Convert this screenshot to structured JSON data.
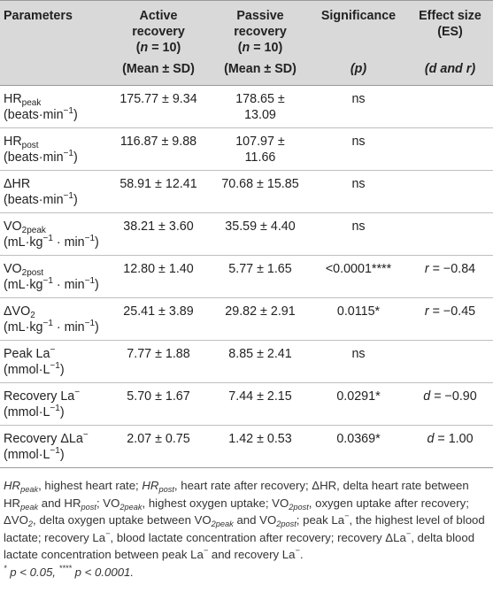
{
  "headers": {
    "parameters": "Parameters",
    "active": {
      "line1": "Active",
      "line2": "recovery",
      "n_open": "(",
      "n_label": "n",
      "n_eq": " = 10)",
      "sub": "(Mean ± SD)"
    },
    "passive": {
      "line1": "Passive",
      "line2": "recovery",
      "n_open": "(",
      "n_label": "n",
      "n_eq": " = 10)",
      "sub": "(Mean ± SD)"
    },
    "significance": {
      "line1": "Significance",
      "sub": "(p)"
    },
    "effect": {
      "line1": "Effect size",
      "line2": "(ES)",
      "sub": "(d and r)"
    }
  },
  "rows": [
    {
      "base": "HR",
      "subscript": "peak",
      "suffix": "",
      "unit": "(beats·min",
      "unit_sup": "−1",
      "unit_end": ")",
      "active": "175.77 ± 9.34",
      "passive_a": "178.65 ±",
      "passive_b": "13.09",
      "sig": "ns",
      "es": ""
    },
    {
      "base": "HR",
      "subscript": "post",
      "suffix": "",
      "unit": "(beats·min",
      "unit_sup": "−1",
      "unit_end": ")",
      "active": "116.87 ± 9.88",
      "passive_a": "107.97 ±",
      "passive_b": "11.66",
      "sig": "ns",
      "es": ""
    },
    {
      "base": "ΔHR",
      "subscript": "",
      "suffix": "",
      "unit": "(beats·min",
      "unit_sup": "−1",
      "unit_end": ")",
      "active": "58.91 ± 12.41",
      "passive_a": "70.68 ± 15.85",
      "passive_b": "",
      "sig": "ns",
      "es": ""
    },
    {
      "base": "VO",
      "subscript": "2peak",
      "suffix": "",
      "unit": "(mL·kg",
      "unit_sup": "−1",
      "unit_end": " · min",
      "unit_sup2": "−1",
      "unit_end2": ")",
      "active": "38.21 ± 3.60",
      "passive_a": "35.59 ± 4.40",
      "passive_b": "",
      "sig": "ns",
      "es": ""
    },
    {
      "base": "VO",
      "subscript": "2post",
      "suffix": "",
      "unit": "(mL·kg",
      "unit_sup": "−1",
      "unit_end": " · min",
      "unit_sup2": "−1",
      "unit_end2": ")",
      "active": "12.80 ± 1.40",
      "passive_a": "5.77 ± 1.65",
      "passive_b": "",
      "sig": "<0.0001****",
      "es_var": "r",
      "es_val": " = −0.84"
    },
    {
      "base": "ΔVO",
      "subscript": "2",
      "suffix": "",
      "unit": "(mL·kg",
      "unit_sup": "−1",
      "unit_end": " · min",
      "unit_sup2": "−1",
      "unit_end2": ")",
      "active": "25.41 ± 3.89",
      "passive_a": "29.82 ± 2.91",
      "passive_b": "",
      "sig": "0.0115*",
      "es_var": "r",
      "es_val": " = −0.45"
    },
    {
      "base": "Peak La",
      "subscript": "",
      "sup": "−",
      "unit": "(mmol·L",
      "unit_sup": "−1",
      "unit_end": ")",
      "active": "7.77 ± 1.88",
      "passive_a": "8.85 ± 2.41",
      "passive_b": "",
      "sig": "ns",
      "es": ""
    },
    {
      "base": "Recovery La",
      "subscript": "",
      "sup": "−",
      "unit": "(mmol·L",
      "unit_sup": "−1",
      "unit_end": ")",
      "active": "5.70 ± 1.67",
      "passive_a": "7.44 ± 2.15",
      "passive_b": "",
      "sig": "0.0291*",
      "es_var": "d",
      "es_val": " = −0.90"
    },
    {
      "base": "Recovery ΔLa",
      "subscript": "",
      "sup": "−",
      "unit": "(mmol·L",
      "unit_sup": "−1",
      "unit_end": ")",
      "active": "2.07 ± 0.75",
      "passive_a": "1.42 ± 0.53",
      "passive_b": "",
      "sig": "0.0369*",
      "es_var": "d",
      "es_val": " = 1.00"
    }
  ],
  "footnote": {
    "t01": "HR",
    "t01s": "peak",
    "t02": ", highest heart rate; ",
    "t03": "HR",
    "t03s": "post",
    "t04": ", heart rate after recovery; ΔHR, delta heart rate between HR",
    "t05s": "peak",
    "t06": " and HR",
    "t07s": "post",
    "t08": "; VO",
    "t09s": "2peak",
    "t10": ", highest oxygen uptake; VO",
    "t11s": "2post",
    "t12": ", oxygen uptake after recovery; ΔVO",
    "t13s": "2",
    "t14": ", delta oxygen uptake between VO",
    "t15s": "2peak",
    "t16": " and VO",
    "t17s": "2post",
    "t18": "; peak La",
    "t19p": "−",
    "t20": ", the highest level of blood lactate; recovery La",
    "t21p": "−",
    "t22": ", blood lactate concentration after recovery; recovery ΔLa",
    "t23p": "−",
    "t24": ", delta blood lactate concentration between peak La",
    "t25p": "−",
    "t26": " and recovery La",
    "t27p": "−",
    "t28": ".",
    "t29p": "*",
    "t30": " p < 0.05, ",
    "t31p": "****",
    "t32": " p < 0.0001."
  }
}
